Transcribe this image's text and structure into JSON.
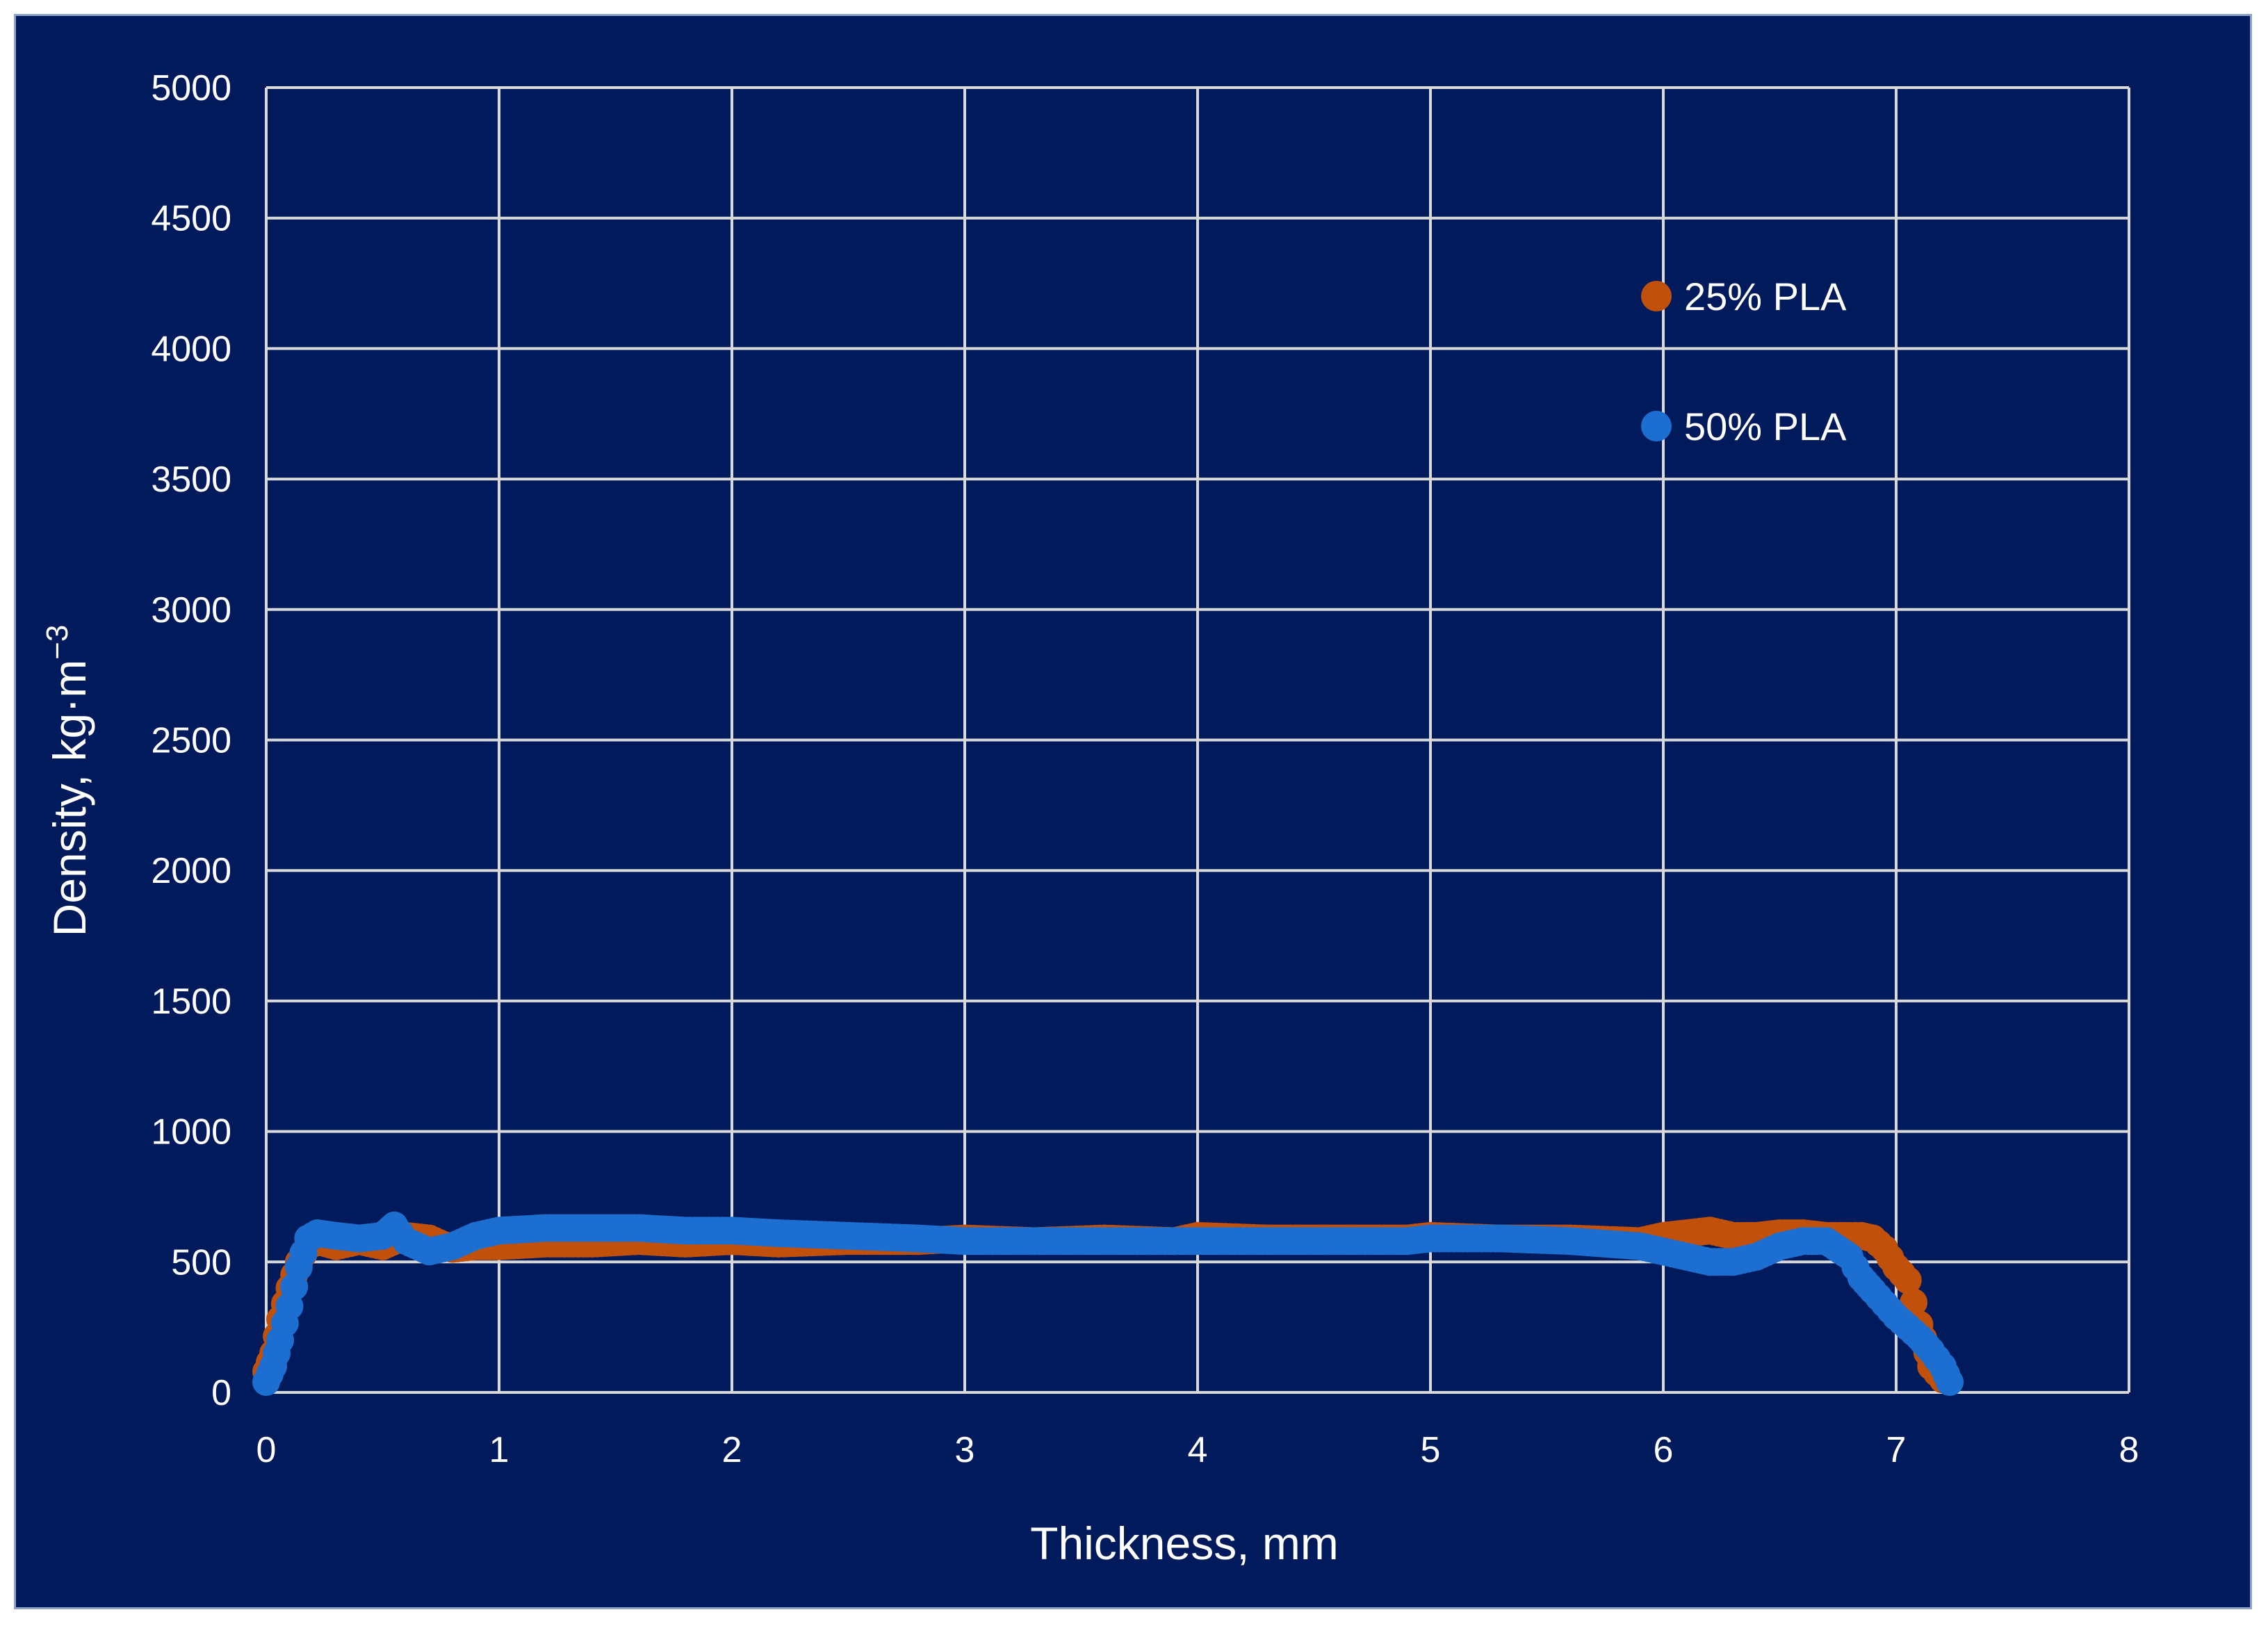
{
  "chart_data": {
    "type": "scatter",
    "xlabel": "Thickness, mm",
    "ylabel": "Density, kg·m",
    "ylabel_superscript": "−3",
    "xlim": [
      0,
      8
    ],
    "ylim": [
      0,
      5000
    ],
    "x_ticks": [
      "0",
      "1",
      "2",
      "3",
      "4",
      "5",
      "6",
      "7",
      "8"
    ],
    "y_ticks": [
      "0",
      "500",
      "1000",
      "1500",
      "2000",
      "2500",
      "3000",
      "3500",
      "4000",
      "4500",
      "5000"
    ],
    "grid": true,
    "legend_position": "top-right",
    "background_color": "#001a5c",
    "series": [
      {
        "name": "25% PLA",
        "color": "#c0500a",
        "x": [
          0.0,
          0.03,
          0.06,
          0.1,
          0.14,
          0.18,
          0.22,
          0.3,
          0.4,
          0.5,
          0.6,
          0.7,
          0.8,
          0.9,
          1.0,
          1.2,
          1.4,
          1.6,
          1.8,
          2.0,
          2.2,
          2.5,
          2.8,
          3.0,
          3.3,
          3.6,
          3.9,
          4.0,
          4.3,
          4.6,
          4.9,
          5.0,
          5.3,
          5.6,
          5.9,
          6.0,
          6.1,
          6.2,
          6.3,
          6.4,
          6.5,
          6.6,
          6.7,
          6.8,
          6.85,
          6.9,
          6.95,
          7.0,
          7.05,
          7.1,
          7.15,
          7.2
        ],
        "y": [
          80,
          150,
          280,
          400,
          500,
          560,
          580,
          560,
          580,
          560,
          600,
          590,
          550,
          560,
          560,
          570,
          570,
          580,
          570,
          580,
          570,
          580,
          580,
          590,
          580,
          590,
          580,
          600,
          590,
          590,
          590,
          600,
          590,
          590,
          580,
          600,
          610,
          620,
          600,
          600,
          610,
          610,
          600,
          600,
          600,
          590,
          550,
          480,
          430,
          260,
          100,
          50
        ]
      },
      {
        "name": "50% PLA",
        "color": "#1c6fd1",
        "x": [
          0.0,
          0.03,
          0.06,
          0.1,
          0.14,
          0.18,
          0.22,
          0.3,
          0.4,
          0.5,
          0.55,
          0.6,
          0.7,
          0.8,
          0.9,
          1.0,
          1.2,
          1.4,
          1.6,
          1.8,
          2.0,
          2.2,
          2.5,
          2.8,
          3.0,
          3.3,
          3.6,
          3.9,
          4.0,
          4.3,
          4.6,
          4.9,
          5.0,
          5.3,
          5.6,
          5.9,
          6.0,
          6.1,
          6.2,
          6.3,
          6.4,
          6.5,
          6.6,
          6.7,
          6.8,
          6.85,
          6.9,
          6.95,
          7.0,
          7.05,
          7.1,
          7.15,
          7.2,
          7.23
        ],
        "y": [
          40,
          100,
          200,
          330,
          480,
          590,
          610,
          600,
          590,
          600,
          640,
          580,
          540,
          560,
          600,
          620,
          630,
          630,
          630,
          620,
          620,
          610,
          600,
          590,
          580,
          580,
          580,
          580,
          580,
          580,
          580,
          580,
          590,
          590,
          580,
          560,
          540,
          520,
          500,
          500,
          520,
          560,
          580,
          580,
          520,
          440,
          390,
          340,
          290,
          250,
          210,
          160,
          100,
          40
        ]
      }
    ]
  }
}
